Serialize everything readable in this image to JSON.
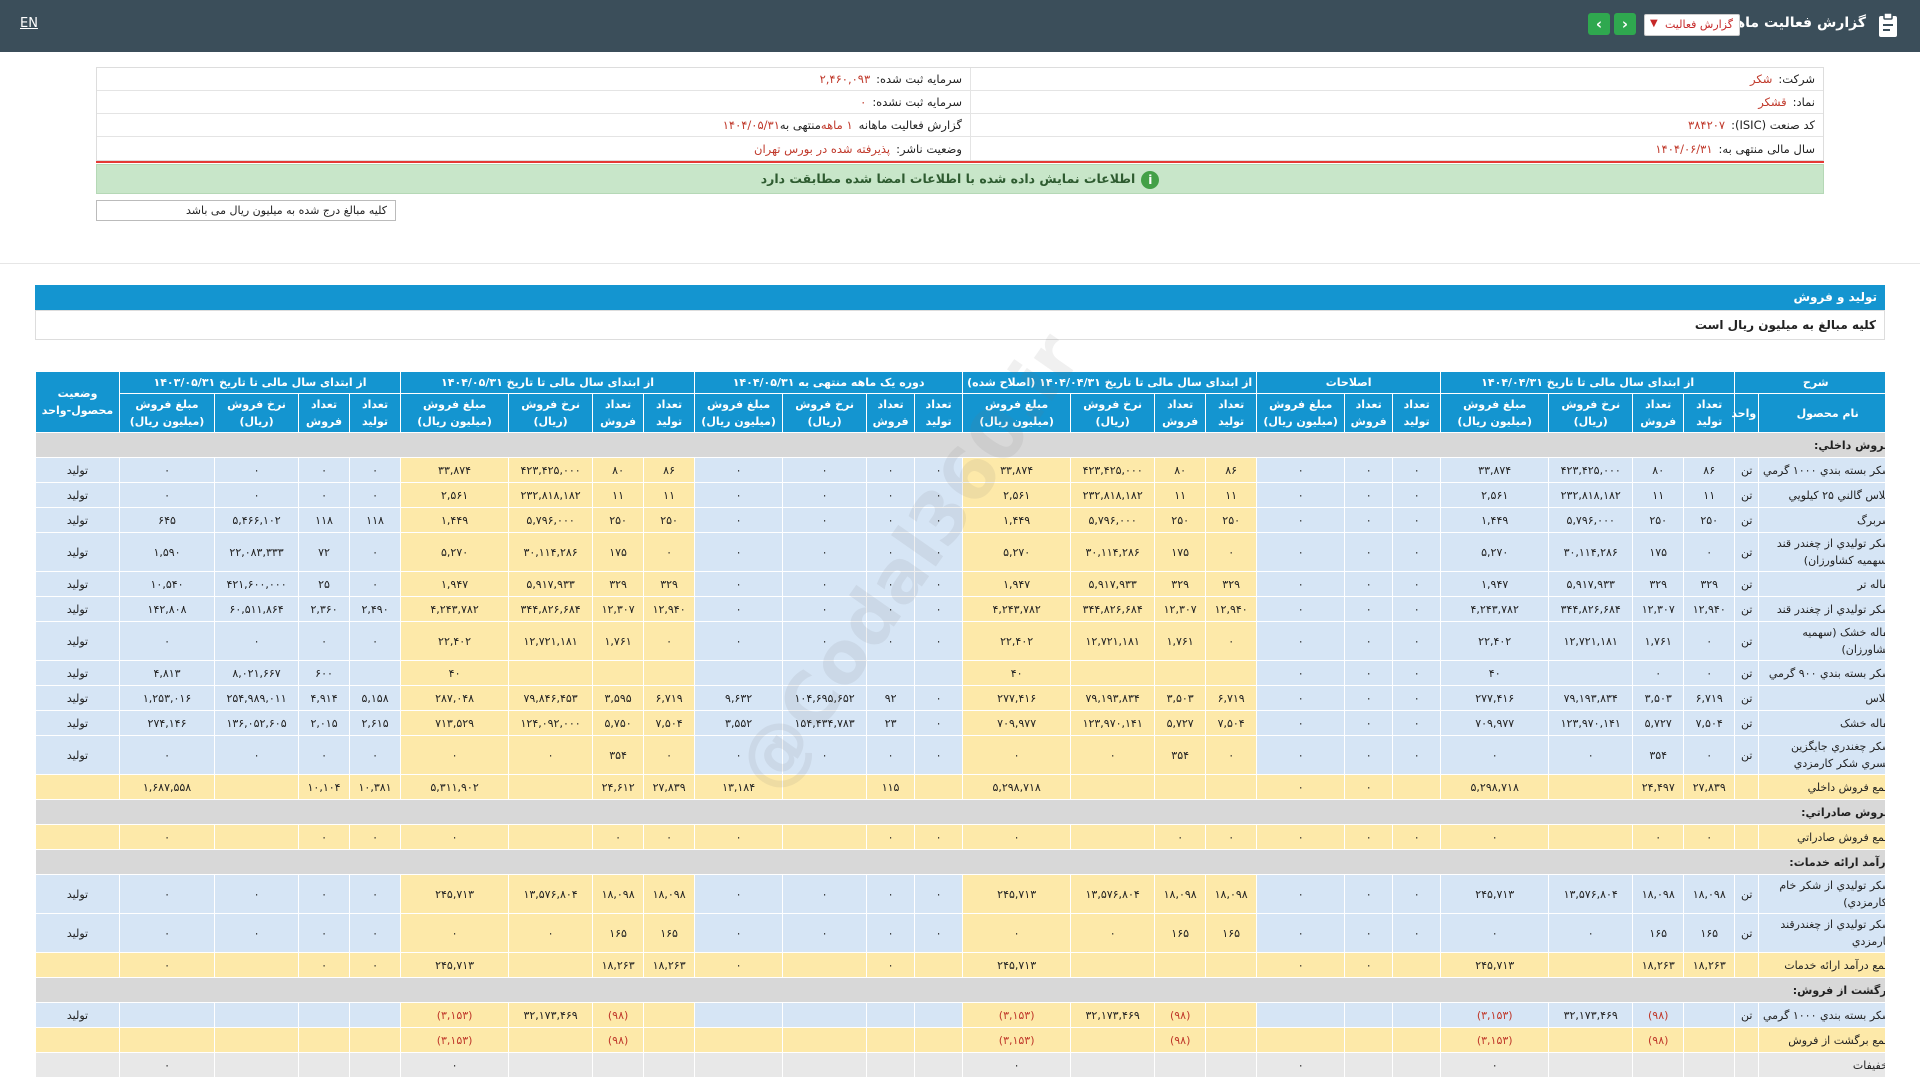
{
  "header": {
    "lang_link": "EN",
    "title": "گزارش فعالیت ماهانه",
    "report_select": "گزارش فعالیت",
    "next_arrow": "›",
    "prev_arrow": "‹"
  },
  "company_info": {
    "company_label": "شرکت:",
    "company_value": "شکر",
    "symbol_label": "نماد:",
    "symbol_value": "قشکر",
    "isic_label": "کد صنعت (ISIC):",
    "isic_value": "۳۸۴۲۰۷",
    "fiscal_label": "سال مالی منتهی به:",
    "fiscal_value": "۱۴۰۴/۰۶/۳۱",
    "reg_cap_label": "سرمایه ثبت شده:",
    "reg_cap_value": "۲,۴۶۰,۰۹۳",
    "unreg_cap_label": "سرمایه ثبت نشده:",
    "unreg_cap_value": "۰",
    "report_label": "گزارش فعالیت ماهانه",
    "report_value": "۱ ماهه",
    "report_end": "منتهی به",
    "report_date": "۱۴۰۴/۰۵/۳۱",
    "status_label": "وضعیت ناشر:",
    "status_value": "پذیرفته شده در بورس تهران"
  },
  "notice": "اطلاعات نمایش داده شده با اطلاعات امضا شده مطابقت دارد",
  "unit_note": "کلیه مبالغ درج شده به میلیون ریال می باشد",
  "section": {
    "title": "تولید و فروش",
    "note": "کلیه مبالغ به میلیون ریال است"
  },
  "watermark": "@Codal360.ir",
  "table": {
    "groups": {
      "desc": "شرح",
      "g1": "از ابتدای سال مالی تا تاریخ ۱۴۰۴/۰۴/۳۱",
      "g2": "اصلاحات",
      "g3": "از ابتدای سال مالی تا تاریخ ۱۴۰۴/۰۴/۳۱ (اصلاح شده)",
      "g4": "دوره یک ماهه منتهی به ۱۴۰۴/۰۵/۳۱",
      "g5": "از ابتدای سال مالی تا تاریخ ۱۴۰۴/۰۵/۳۱",
      "g6": "از ابتدای سال مالی تا تاریخ ۱۴۰۳/۰۵/۳۱",
      "status": "وضعیت محصول-واحد"
    },
    "sub": {
      "name": "نام محصول",
      "unit": "واحد",
      "prod": "تعداد تولید",
      "sale": "تعداد فروش",
      "rate": "نرخ فروش (ریال)",
      "amount": "مبلغ فروش (میلیون ریال)"
    },
    "rows": [
      {
        "type": "cat",
        "name": "فروش داخلي:"
      },
      {
        "type": "item",
        "name": "شکر بسته بندي ۱۰۰۰ گرمي",
        "unit": "تن",
        "c": [
          "۸۶",
          "۸۰",
          "۴۲۳,۴۲۵,۰۰۰",
          "۳۳,۸۷۴",
          "۰",
          "۰",
          "۰",
          "۸۶",
          "۸۰",
          "۴۲۳,۴۲۵,۰۰۰",
          "۳۳,۸۷۴",
          "۰",
          "۰",
          "۰",
          "۰",
          "۸۶",
          "۸۰",
          "۴۲۳,۴۲۵,۰۰۰",
          "۳۳,۸۷۴",
          "۰",
          "۰",
          "۰",
          "۰"
        ],
        "status": "توليد"
      },
      {
        "type": "item",
        "name": "ملاس گالني ۲۵ کيلويي",
        "unit": "تن",
        "c": [
          "۱۱",
          "۱۱",
          "۲۳۲,۸۱۸,۱۸۲",
          "۲,۵۶۱",
          "۰",
          "۰",
          "۰",
          "۱۱",
          "۱۱",
          "۲۳۲,۸۱۸,۱۸۲",
          "۲,۵۶۱",
          "۰",
          "۰",
          "۰",
          "۰",
          "۱۱",
          "۱۱",
          "۲۳۲,۸۱۸,۱۸۲",
          "۲,۵۶۱",
          "۰",
          "۰",
          "۰",
          "۰"
        ],
        "status": "توليد"
      },
      {
        "type": "item",
        "name": "سربرگ",
        "unit": "تن",
        "c": [
          "۲۵۰",
          "۲۵۰",
          "۵,۷۹۶,۰۰۰",
          "۱,۴۴۹",
          "۰",
          "۰",
          "۰",
          "۲۵۰",
          "۲۵۰",
          "۵,۷۹۶,۰۰۰",
          "۱,۴۴۹",
          "۰",
          "۰",
          "۰",
          "۰",
          "۲۵۰",
          "۲۵۰",
          "۵,۷۹۶,۰۰۰",
          "۱,۴۴۹",
          "۱۱۸",
          "۱۱۸",
          "۵,۴۶۶,۱۰۲",
          "۶۴۵"
        ],
        "status": "توليد"
      },
      {
        "type": "item",
        "name": "شکر توليدي از چغندر قند (سهميه کشاورزان)",
        "unit": "تن",
        "c": [
          "۰",
          "۱۷۵",
          "۳۰,۱۱۴,۲۸۶",
          "۵,۲۷۰",
          "۰",
          "۰",
          "۰",
          "۰",
          "۱۷۵",
          "۳۰,۱۱۴,۲۸۶",
          "۵,۲۷۰",
          "۰",
          "۰",
          "۰",
          "۰",
          "۰",
          "۱۷۵",
          "۳۰,۱۱۴,۲۸۶",
          "۵,۲۷۰",
          "۰",
          "۷۲",
          "۲۲,۰۸۳,۳۳۳",
          "۱,۵۹۰"
        ],
        "status": "توليد"
      },
      {
        "type": "item",
        "name": "تفاله تر",
        "unit": "تن",
        "c": [
          "۳۲۹",
          "۳۲۹",
          "۵,۹۱۷,۹۳۳",
          "۱,۹۴۷",
          "۰",
          "۰",
          "۰",
          "۳۲۹",
          "۳۲۹",
          "۵,۹۱۷,۹۳۳",
          "۱,۹۴۷",
          "۰",
          "۰",
          "۰",
          "۰",
          "۳۲۹",
          "۳۲۹",
          "۵,۹۱۷,۹۳۳",
          "۱,۹۴۷",
          "۰",
          "۲۵",
          "۴۲۱,۶۰۰,۰۰۰",
          "۱۰,۵۴۰"
        ],
        "status": "توليد"
      },
      {
        "type": "item",
        "name": "شکر توليدي از چغندر قند",
        "unit": "تن",
        "c": [
          "۱۲,۹۴۰",
          "۱۲,۳۰۷",
          "۳۴۴,۸۲۶,۶۸۴",
          "۴,۲۴۳,۷۸۲",
          "۰",
          "۰",
          "۰",
          "۱۲,۹۴۰",
          "۱۲,۳۰۷",
          "۳۴۴,۸۲۶,۶۸۴",
          "۴,۲۴۳,۷۸۲",
          "۰",
          "۰",
          "۰",
          "۰",
          "۱۲,۹۴۰",
          "۱۲,۳۰۷",
          "۳۴۴,۸۲۶,۶۸۴",
          "۴,۲۴۳,۷۸۲",
          "۲,۴۹۰",
          "۲,۳۶۰",
          "۶۰,۵۱۱,۸۶۴",
          "۱۴۲,۸۰۸"
        ],
        "status": "توليد"
      },
      {
        "type": "item",
        "name": "تفاله خشک (سهميه کشاورزان)",
        "unit": "تن",
        "c": [
          "۰",
          "۱,۷۶۱",
          "۱۲,۷۲۱,۱۸۱",
          "۲۲,۴۰۲",
          "۰",
          "۰",
          "۰",
          "۰",
          "۱,۷۶۱",
          "۱۲,۷۲۱,۱۸۱",
          "۲۲,۴۰۲",
          "۰",
          "۰",
          "۰",
          "۰",
          "۰",
          "۱,۷۶۱",
          "۱۲,۷۲۱,۱۸۱",
          "۲۲,۴۰۲",
          "۰",
          "۰",
          "۰",
          "۰"
        ],
        "status": "توليد"
      },
      {
        "type": "item",
        "name": "شکر بسته بندي ۹۰۰ گرمي",
        "unit": "تن",
        "c": [
          "۰",
          "۰",
          "",
          "۴۰",
          "۰",
          "۰",
          "۰",
          "",
          "",
          "",
          "۴۰",
          "",
          "",
          "",
          "",
          "",
          "",
          "",
          "۴۰",
          "",
          "۶۰۰",
          "۸,۰۲۱,۶۶۷",
          "۴,۸۱۳"
        ],
        "status": "توليد"
      },
      {
        "type": "item",
        "name": "ملاس",
        "unit": "تن",
        "c": [
          "۶,۷۱۹",
          "۳,۵۰۳",
          "۷۹,۱۹۳,۸۳۴",
          "۲۷۷,۴۱۶",
          "۰",
          "۰",
          "۰",
          "۶,۷۱۹",
          "۳,۵۰۳",
          "۷۹,۱۹۳,۸۳۴",
          "۲۷۷,۴۱۶",
          "۰",
          "۹۲",
          "۱۰۴,۶۹۵,۶۵۲",
          "۹,۶۳۲",
          "۶,۷۱۹",
          "۳,۵۹۵",
          "۷۹,۸۴۶,۴۵۳",
          "۲۸۷,۰۴۸",
          "۵,۱۵۸",
          "۴,۹۱۴",
          "۲۵۴,۹۸۹,۰۱۱",
          "۱,۲۵۳,۰۱۶"
        ],
        "status": "توليد"
      },
      {
        "type": "item",
        "name": "تفاله خشک",
        "unit": "تن",
        "c": [
          "۷,۵۰۴",
          "۵,۷۲۷",
          "۱۲۳,۹۷۰,۱۴۱",
          "۷۰۹,۹۷۷",
          "۰",
          "۰",
          "۰",
          "۷,۵۰۴",
          "۵,۷۲۷",
          "۱۲۳,۹۷۰,۱۴۱",
          "۷۰۹,۹۷۷",
          "۰",
          "۲۳",
          "۱۵۴,۴۳۴,۷۸۳",
          "۳,۵۵۲",
          "۷,۵۰۴",
          "۵,۷۵۰",
          "۱۲۴,۰۹۲,۰۰۰",
          "۷۱۳,۵۲۹",
          "۲,۶۱۵",
          "۲,۰۱۵",
          "۱۳۶,۰۵۲,۶۰۵",
          "۲۷۴,۱۴۶"
        ],
        "status": "توليد"
      },
      {
        "type": "item",
        "name": "شکر چغندري جايگزين کسري شکر کارمزدي",
        "unit": "تن",
        "c": [
          "۰",
          "۳۵۴",
          "۰",
          "۰",
          "۰",
          "۰",
          "۰",
          "۰",
          "۳۵۴",
          "۰",
          "۰",
          "۰",
          "۰",
          "۰",
          "۰",
          "۰",
          "۳۵۴",
          "۰",
          "۰",
          "۰",
          "۰",
          "۰",
          "۰"
        ],
        "status": "توليد"
      },
      {
        "type": "tot",
        "name": "جمع فروش داخلي",
        "unit": "",
        "c": [
          "۲۷,۸۳۹",
          "۲۴,۴۹۷",
          "",
          "۵,۲۹۸,۷۱۸",
          "",
          "۰",
          "۰",
          "",
          "",
          "",
          "۵,۲۹۸,۷۱۸",
          "",
          "۱۱۵",
          "",
          "۱۳,۱۸۴",
          "۲۷,۸۳۹",
          "۲۴,۶۱۲",
          "",
          "۵,۳۱۱,۹۰۲",
          "۱۰,۳۸۱",
          "۱۰,۱۰۴",
          "",
          "۱,۶۸۷,۵۵۸"
        ],
        "status": ""
      },
      {
        "type": "cat",
        "name": "فروش صادراتي:"
      },
      {
        "type": "tot",
        "name": "جمع فروش صادراتي",
        "unit": "",
        "c": [
          "۰",
          "۰",
          "",
          "۰",
          "۰",
          "۰",
          "۰",
          "۰",
          "۰",
          "",
          "۰",
          "۰",
          "۰",
          "",
          "۰",
          "۰",
          "۰",
          "",
          "۰",
          "۰",
          "۰",
          "",
          "۰"
        ],
        "status": ""
      },
      {
        "type": "cat",
        "name": "درآمد ارائه خدمات:"
      },
      {
        "type": "item",
        "name": "شکر توليدي از شکر خام (کارمزدي)",
        "unit": "تن",
        "c": [
          "۱۸,۰۹۸",
          "۱۸,۰۹۸",
          "۱۳,۵۷۶,۸۰۴",
          "۲۴۵,۷۱۳",
          "۰",
          "۰",
          "۰",
          "۱۸,۰۹۸",
          "۱۸,۰۹۸",
          "۱۳,۵۷۶,۸۰۴",
          "۲۴۵,۷۱۳",
          "۰",
          "۰",
          "۰",
          "۰",
          "۱۸,۰۹۸",
          "۱۸,۰۹۸",
          "۱۳,۵۷۶,۸۰۴",
          "۲۴۵,۷۱۳",
          "۰",
          "۰",
          "۰",
          "۰"
        ],
        "status": "توليد"
      },
      {
        "type": "item",
        "name": "شکر توليدي از چغندرقند کارمزدي",
        "unit": "تن",
        "c": [
          "۱۶۵",
          "۱۶۵",
          "۰",
          "۰",
          "۰",
          "۰",
          "۰",
          "۱۶۵",
          "۱۶۵",
          "۰",
          "۰",
          "۰",
          "۰",
          "۰",
          "۰",
          "۱۶۵",
          "۱۶۵",
          "۰",
          "۰",
          "۰",
          "۰",
          "۰",
          "۰"
        ],
        "status": "توليد"
      },
      {
        "type": "tot",
        "name": "جمع درآمد ارائه خدمات",
        "unit": "",
        "c": [
          "۱۸,۲۶۳",
          "۱۸,۲۶۳",
          "",
          "۲۴۵,۷۱۳",
          "",
          "۰",
          "۰",
          "",
          "",
          "",
          "۲۴۵,۷۱۳",
          "",
          "۰",
          "",
          "۰",
          "۱۸,۲۶۳",
          "۱۸,۲۶۳",
          "",
          "۲۴۵,۷۱۳",
          "۰",
          "۰",
          "",
          "۰"
        ],
        "status": ""
      },
      {
        "type": "cat",
        "name": "برگشت از فروش:"
      },
      {
        "type": "item",
        "name": "شکر بسته بندي ۱۰۰۰ گرمي",
        "unit": "تن",
        "c": [
          "",
          "(۹۸)",
          "۳۲,۱۷۳,۴۶۹",
          "(۳,۱۵۳)",
          "",
          "",
          "",
          "",
          "(۹۸)",
          "۳۲,۱۷۳,۴۶۹",
          "(۳,۱۵۳)",
          "",
          "",
          "",
          "",
          "",
          "(۹۸)",
          "۳۲,۱۷۳,۴۶۹",
          "(۳,۱۵۳)",
          "",
          "",
          "",
          ""
        ],
        "status": "توليد"
      },
      {
        "type": "tot",
        "name": "جمع برگشت از فروش",
        "unit": "",
        "c": [
          "",
          "(۹۸)",
          "",
          "(۳,۱۵۳)",
          "",
          "",
          "",
          "",
          "(۹۸)",
          "",
          "(۳,۱۵۳)",
          "",
          "",
          "",
          "",
          "",
          "(۹۸)",
          "",
          "(۳,۱۵۳)",
          "",
          "",
          "",
          ""
        ],
        "status": ""
      },
      {
        "type": "grey",
        "name": "تخفيفات",
        "unit": "",
        "c": [
          "",
          "",
          "",
          "۰",
          "",
          "",
          "۰",
          "",
          "",
          "",
          "۰",
          "",
          "",
          "",
          "",
          "",
          "",
          "",
          "۰",
          "",
          "",
          "",
          "۰"
        ],
        "status": ""
      }
    ]
  }
}
